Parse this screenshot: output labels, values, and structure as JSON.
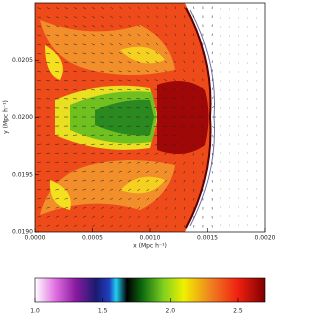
{
  "chart_data": {
    "type": "heatmap",
    "xlabel": "x (Mpc h⁻¹)",
    "ylabel": "y (Mpc h⁻¹)",
    "xlim": [
      0,
      0.002
    ],
    "xticks": [
      {
        "value": 0,
        "label": "0.0000"
      },
      {
        "value": 0.0005,
        "label": "0.0005"
      },
      {
        "value": 0.001,
        "label": "0.0010"
      },
      {
        "value": 0.0015,
        "label": "0.0015"
      },
      {
        "value": 0.002,
        "label": "0.0020"
      }
    ],
    "ylim": [
      0.019,
      0.021
    ],
    "yticks": [
      {
        "value": 0.019,
        "label": "0.0190"
      },
      {
        "value": 0.0195,
        "label": "0.0195"
      },
      {
        "value": 0.02,
        "label": "0.0200"
      },
      {
        "value": 0.0205,
        "label": "0.0205"
      }
    ],
    "clim": [
      1.0,
      2.7
    ],
    "cticks": [
      {
        "value": 1.0,
        "label": "1.0"
      },
      1.5,
      {
        "value": 2.0,
        "label": "2.0"
      },
      2.5
    ],
    "colormap": [
      {
        "value": 1.0,
        "color": "#ffffff"
      },
      {
        "value": 1.15,
        "color": "#e070e0"
      },
      {
        "value": 1.3,
        "color": "#8a1aa0"
      },
      {
        "value": 1.45,
        "color": "#1a1a70"
      },
      {
        "value": 1.55,
        "color": "#2040c0"
      },
      {
        "value": 1.6,
        "color": "#20d0f0"
      },
      {
        "value": 1.68,
        "color": "#000000"
      },
      {
        "value": 1.8,
        "color": "#107010"
      },
      {
        "value": 1.95,
        "color": "#80d020"
      },
      {
        "value": 2.1,
        "color": "#f0f000"
      },
      {
        "value": 2.3,
        "color": "#f08020"
      },
      {
        "value": 2.5,
        "color": "#f02010"
      },
      {
        "value": 2.7,
        "color": "#800000"
      }
    ]
  }
}
